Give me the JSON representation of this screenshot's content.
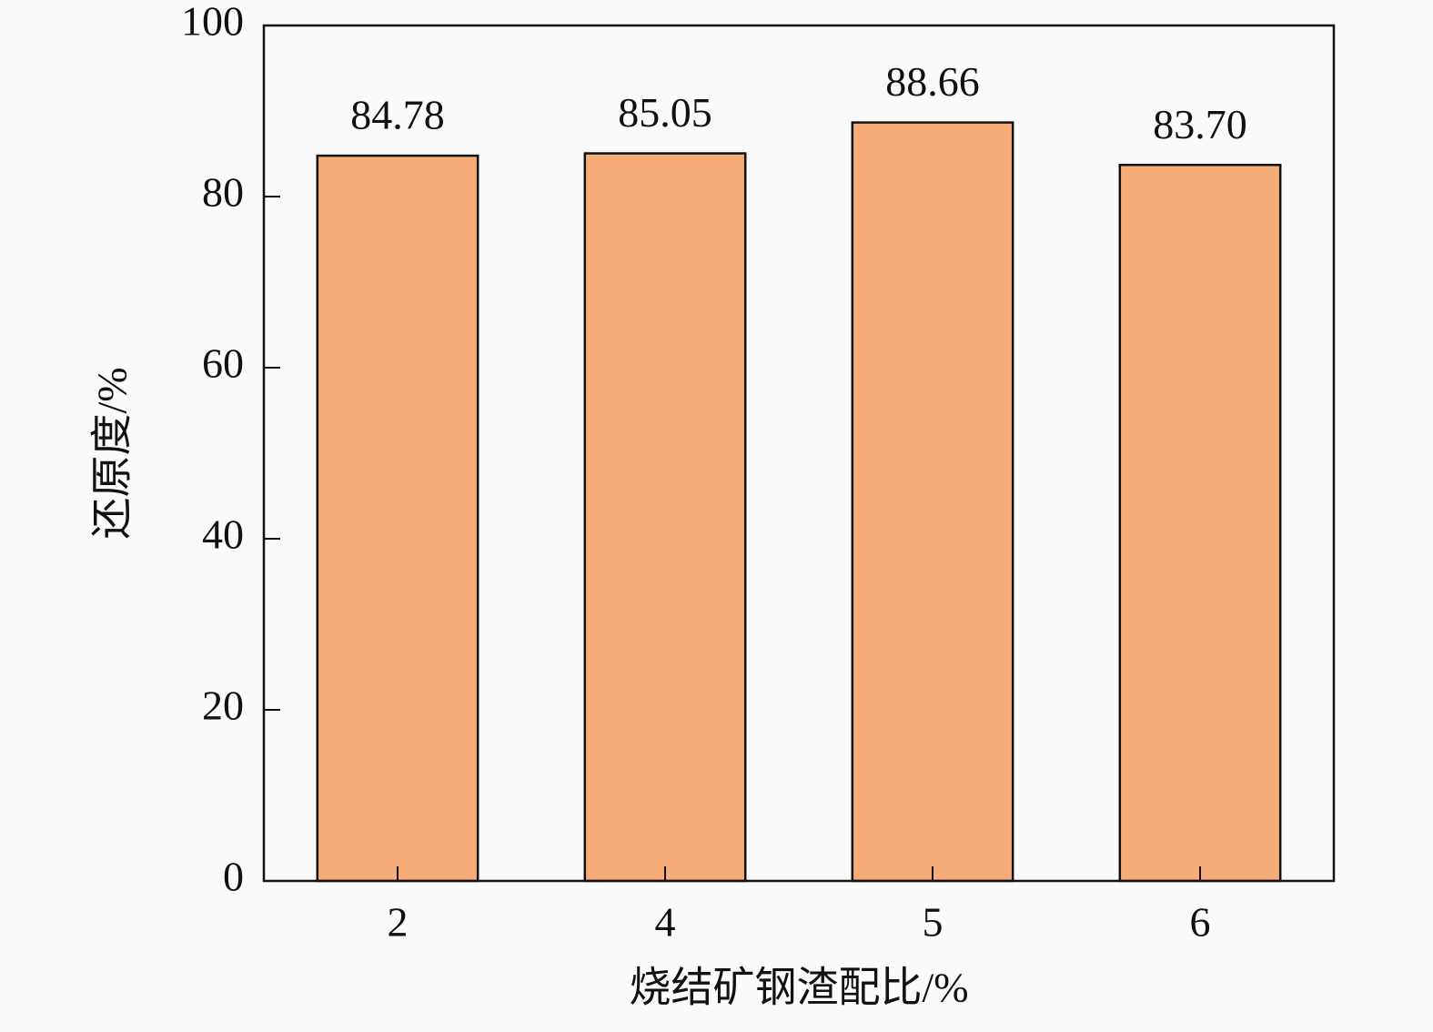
{
  "chart_data": {
    "type": "bar",
    "x_label": "烧结矿钢渣配比/%",
    "y_label": "还原度/%",
    "categories": [
      "2",
      "4",
      "5",
      "6"
    ],
    "values": [
      84.78,
      85.05,
      88.66,
      83.7
    ],
    "value_labels": [
      "84.78",
      "85.05",
      "88.66",
      "83.70"
    ],
    "color": "#f5ac78",
    "ylim": [
      0,
      100
    ],
    "yticks": [
      0,
      20,
      40,
      60,
      80,
      100
    ],
    "grid": false
  }
}
